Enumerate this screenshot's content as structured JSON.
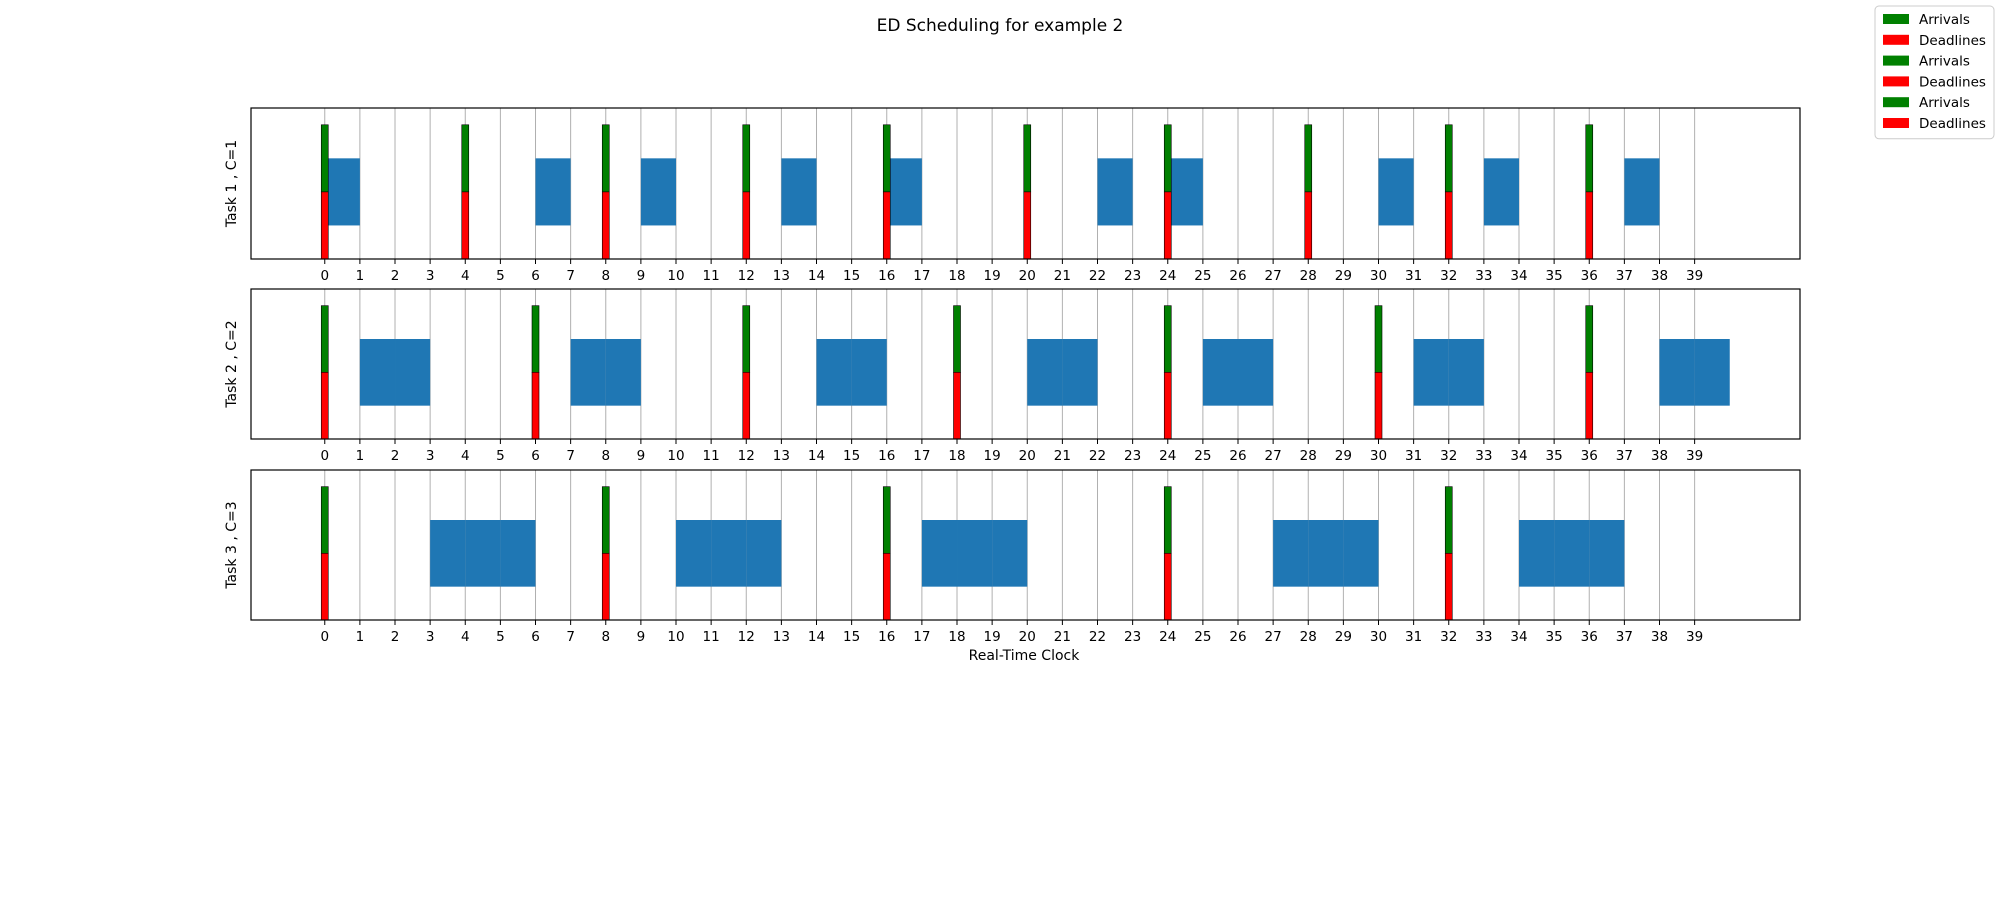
{
  "chart_data": {
    "type": "gantt",
    "title": "ED Scheduling for example 2",
    "xlabel": "Real-Time Clock",
    "xlim": [
      -2.1,
      42
    ],
    "x_ticks": [
      0,
      1,
      2,
      3,
      4,
      5,
      6,
      7,
      8,
      9,
      10,
      11,
      12,
      13,
      14,
      15,
      16,
      17,
      18,
      19,
      20,
      21,
      22,
      23,
      24,
      25,
      26,
      27,
      28,
      29,
      30,
      31,
      32,
      33,
      34,
      35,
      36,
      37,
      38,
      39
    ],
    "grid": "vertical",
    "legend_position": "top-right",
    "legend": [
      {
        "label": "Arrivals",
        "color": "#008000"
      },
      {
        "label": "Deadlines",
        "color": "#ff0000"
      },
      {
        "label": "Arrivals",
        "color": "#008000"
      },
      {
        "label": "Deadlines",
        "color": "#ff0000"
      },
      {
        "label": "Arrivals",
        "color": "#008000"
      },
      {
        "label": "Deadlines",
        "color": "#ff0000"
      }
    ],
    "colors": {
      "execution": "#1f77b4",
      "arrival": "#008000",
      "deadline": "#ff0000",
      "grid": "#b0b0b0"
    },
    "tasks": [
      {
        "ylabel": "Task 1 , C=1",
        "arrivals": [
          0,
          4,
          8,
          12,
          16,
          20,
          24,
          28,
          32,
          36
        ],
        "deadlines": [
          0,
          4,
          8,
          12,
          16,
          20,
          24,
          28,
          32,
          36
        ],
        "executions": [
          [
            0,
            1
          ],
          [
            6,
            7
          ],
          [
            9,
            10
          ],
          [
            13,
            14
          ],
          [
            16,
            17
          ],
          [
            22,
            23
          ],
          [
            24,
            25
          ],
          [
            30,
            31
          ],
          [
            33,
            34
          ],
          [
            37,
            38
          ]
        ]
      },
      {
        "ylabel": "Task 2 , C=2",
        "arrivals": [
          0,
          6,
          12,
          18,
          24,
          30,
          36
        ],
        "deadlines": [
          0,
          6,
          12,
          18,
          24,
          30,
          36
        ],
        "executions": [
          [
            1,
            2
          ],
          [
            2,
            3
          ],
          [
            7,
            8
          ],
          [
            8,
            9
          ],
          [
            14,
            15
          ],
          [
            15,
            16
          ],
          [
            20,
            21
          ],
          [
            21,
            22
          ],
          [
            25,
            26
          ],
          [
            26,
            27
          ],
          [
            31,
            32
          ],
          [
            32,
            33
          ],
          [
            38,
            39
          ],
          [
            39,
            40
          ]
        ]
      },
      {
        "ylabel": "Task 3 , C=3",
        "arrivals": [
          0,
          8,
          16,
          24,
          32
        ],
        "deadlines": [
          0,
          8,
          16,
          24,
          32
        ],
        "executions": [
          [
            3,
            4
          ],
          [
            4,
            5
          ],
          [
            5,
            6
          ],
          [
            10,
            11
          ],
          [
            11,
            12
          ],
          [
            12,
            13
          ],
          [
            17,
            18
          ],
          [
            18,
            19
          ],
          [
            19,
            20
          ],
          [
            27,
            28
          ],
          [
            28,
            29
          ],
          [
            29,
            30
          ],
          [
            34,
            35
          ],
          [
            35,
            36
          ],
          [
            36,
            37
          ]
        ]
      }
    ]
  }
}
